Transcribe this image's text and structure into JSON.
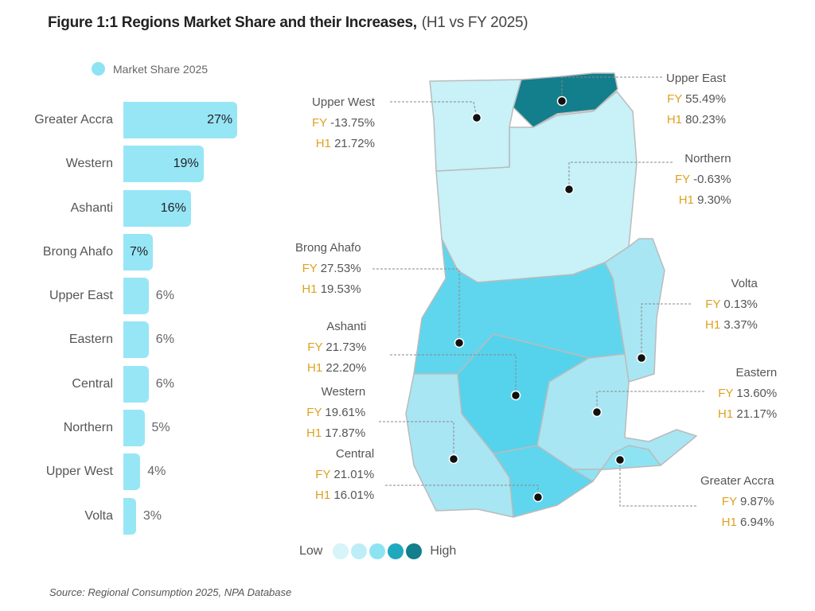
{
  "title": "Figure 1:1 Regions Market Share and their Increases,",
  "subtitle": "(H1 vs FY 2025)",
  "source": "Source: Regional Consumption 2025, NPA Database",
  "chart_data": [
    {
      "type": "bar",
      "orientation": "horizontal",
      "legend": "Market Share 2025",
      "legend_position": "top-left",
      "categories": [
        "Greater Accra",
        "Western",
        "Ashanti",
        "Brong Ahafo",
        "Upper East",
        "Eastern",
        "Central",
        "Northern",
        "Upper West",
        "Volta"
      ],
      "values": [
        27,
        19,
        16,
        7,
        6,
        6,
        6,
        5,
        4,
        3
      ],
      "labels": [
        "27%",
        "19%",
        "16%",
        "7%",
        "6%",
        "6%",
        "6%",
        "5%",
        "4%",
        "3%"
      ],
      "color": "#97e6f6"
    },
    {
      "type": "choropleth-map",
      "scale": {
        "low": "Low",
        "high": "High",
        "colors": [
          "#d6f4fa",
          "#bdeef8",
          "#8ee3f3",
          "#1fa9bf",
          "#137e8c"
        ]
      },
      "regions": [
        {
          "name": "Upper West",
          "fy_label": "FY",
          "fy": "-13.75%",
          "h1_label": "H1",
          "h1": "21.72%"
        },
        {
          "name": "Upper East",
          "fy_label": "FY",
          "fy": "55.49%",
          "h1_label": "H1",
          "h1": "80.23%"
        },
        {
          "name": "Northern",
          "fy_label": "FY",
          "fy": "-0.63%",
          "h1_label": "H1",
          "h1": "9.30%"
        },
        {
          "name": "Brong Ahafo",
          "fy_label": "FY",
          "fy": "27.53%",
          "h1_label": "H1",
          "h1": "19.53%"
        },
        {
          "name": "Volta",
          "fy_label": "FY",
          "fy": "0.13%",
          "h1_label": "H1",
          "h1": "3.37%"
        },
        {
          "name": "Ashanti",
          "fy_label": "FY",
          "fy": "21.73%",
          "h1_label": "H1",
          "h1": "22.20%"
        },
        {
          "name": "Eastern",
          "fy_label": "FY",
          "fy": "13.60%",
          "h1_label": "H1",
          "h1": "21.17%"
        },
        {
          "name": "Western",
          "fy_label": "FY",
          "fy": "19.61%",
          "h1_label": "H1",
          "h1": "17.87%"
        },
        {
          "name": "Central",
          "fy_label": "FY",
          "fy": "21.01%",
          "h1_label": "H1",
          "h1": "16.01%"
        },
        {
          "name": "Greater Accra",
          "fy_label": "FY",
          "fy": "9.87%",
          "h1_label": "H1",
          "h1": "6.94%"
        }
      ]
    }
  ]
}
